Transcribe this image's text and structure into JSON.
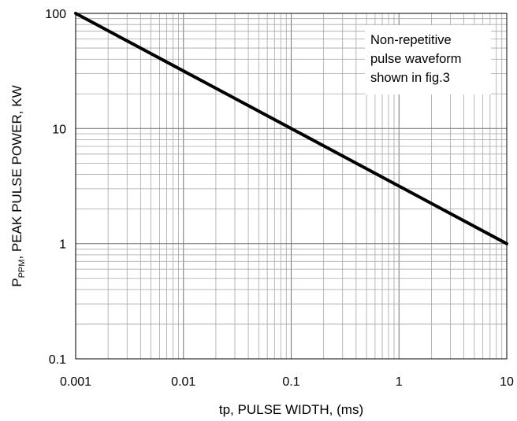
{
  "chart_data": {
    "type": "line",
    "x_scale": "log",
    "y_scale": "log",
    "xlim": [
      0.001,
      10
    ],
    "ylim": [
      0.1,
      100
    ],
    "grid": true,
    "xlabel": "tp, PULSE WIDTH, (ms)",
    "ylabel": {
      "prefix": "P",
      "subscript": "PPM",
      "suffix": ", PEAK PULSE POWER, KW"
    },
    "x_ticks": [
      {
        "value": 0.001,
        "label": "0.001"
      },
      {
        "value": 0.01,
        "label": "0.01"
      },
      {
        "value": 0.1,
        "label": "0.1"
      },
      {
        "value": 1,
        "label": "1"
      },
      {
        "value": 10,
        "label": "10"
      }
    ],
    "y_ticks": [
      {
        "value": 0.1,
        "label": "0.1"
      },
      {
        "value": 1,
        "label": "1"
      },
      {
        "value": 10,
        "label": "10"
      },
      {
        "value": 100,
        "label": "100"
      }
    ],
    "series": [
      {
        "color": "#000000",
        "x": [
          0.001,
          0.01,
          0.1,
          1,
          10
        ],
        "y": [
          100,
          31.6,
          10,
          3.16,
          1
        ]
      }
    ],
    "annotation": {
      "lines": [
        "Non-repetitive",
        "pulse waveform",
        "shown in fig.3"
      ],
      "position": "top-right"
    }
  }
}
